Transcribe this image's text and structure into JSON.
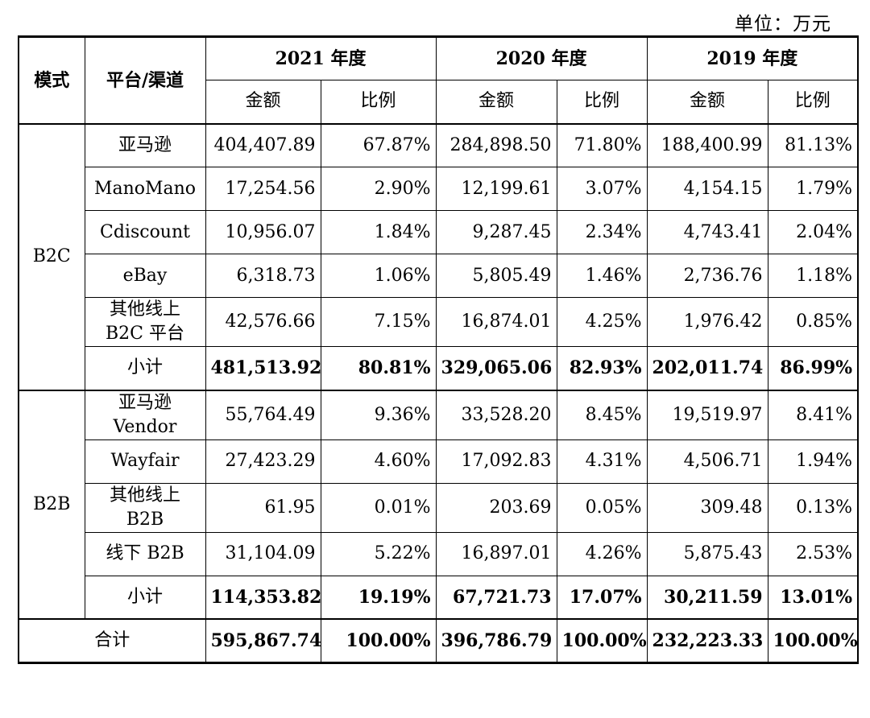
{
  "unit_label": "单位：万元",
  "header": {
    "mode": "模式",
    "platform": "平台/渠道",
    "years": [
      "2021 年度",
      "2020 年度",
      "2019 年度"
    ],
    "amount": "金额",
    "ratio": "比例"
  },
  "b2c": {
    "label": "B2C",
    "rows": [
      {
        "platform": [
          "亚马逊"
        ],
        "values": [
          "404,407.89",
          "67.87%",
          "284,898.50",
          "71.80%",
          "188,400.99",
          "81.13%"
        ]
      },
      {
        "platform": [
          "ManoMano"
        ],
        "values": [
          "17,254.56",
          "2.90%",
          "12,199.61",
          "3.07%",
          "4,154.15",
          "1.79%"
        ]
      },
      {
        "platform": [
          "Cdiscount"
        ],
        "values": [
          "10,956.07",
          "1.84%",
          "9,287.45",
          "2.34%",
          "4,743.41",
          "2.04%"
        ]
      },
      {
        "platform": [
          "eBay"
        ],
        "values": [
          "6,318.73",
          "1.06%",
          "5,805.49",
          "1.46%",
          "2,736.76",
          "1.18%"
        ]
      },
      {
        "platform": [
          "其他线上",
          "B2C 平台"
        ],
        "values": [
          "42,576.66",
          "7.15%",
          "16,874.01",
          "4.25%",
          "1,976.42",
          "0.85%"
        ]
      }
    ],
    "subtotal": {
      "label": "小计",
      "values": [
        "481,513.92",
        "80.81%",
        "329,065.06",
        "82.93%",
        "202,011.74",
        "86.99%"
      ]
    }
  },
  "b2b": {
    "label": "B2B",
    "rows": [
      {
        "platform": [
          "亚马逊",
          "Vendor"
        ],
        "values": [
          "55,764.49",
          "9.36%",
          "33,528.20",
          "8.45%",
          "19,519.97",
          "8.41%"
        ]
      },
      {
        "platform": [
          "Wayfair"
        ],
        "values": [
          "27,423.29",
          "4.60%",
          "17,092.83",
          "4.31%",
          "4,506.71",
          "1.94%"
        ]
      },
      {
        "platform": [
          "其他线上",
          "B2B"
        ],
        "values": [
          "61.95",
          "0.01%",
          "203.69",
          "0.05%",
          "309.48",
          "0.13%"
        ]
      },
      {
        "platform": [
          "线下 B2B"
        ],
        "values": [
          "31,104.09",
          "5.22%",
          "16,897.01",
          "4.26%",
          "5,875.43",
          "2.53%"
        ]
      }
    ],
    "subtotal": {
      "label": "小计",
      "values": [
        "114,353.82",
        "19.19%",
        "67,721.73",
        "17.07%",
        "30,211.59",
        "13.01%"
      ]
    }
  },
  "total": {
    "label": "合计",
    "values": [
      "595,867.74",
      "100.00%",
      "396,786.79",
      "100.00%",
      "232,223.33",
      "100.00%"
    ]
  }
}
